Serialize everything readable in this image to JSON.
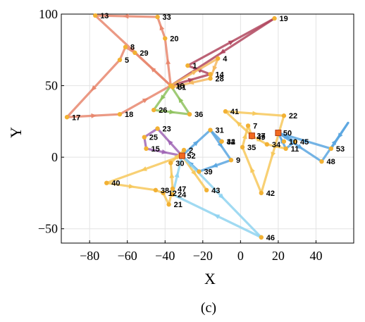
{
  "chart_data": {
    "type": "scatter",
    "xlabel": "X",
    "ylabel": "Y",
    "caption": "(c)",
    "xlim": [
      -95,
      60
    ],
    "ylim": [
      -60,
      100
    ],
    "xticks": [
      -80,
      -60,
      -40,
      -20,
      0,
      20,
      40
    ],
    "yticks": [
      -50,
      0,
      50,
      100
    ],
    "grid": true,
    "nodes": [
      {
        "id": "1",
        "x": -28,
        "y": 64
      },
      {
        "id": "2",
        "x": -30,
        "y": 5
      },
      {
        "id": "4",
        "x": -12,
        "y": 69
      },
      {
        "id": "5",
        "x": -64,
        "y": 68
      },
      {
        "id": "7",
        "x": 4,
        "y": 22
      },
      {
        "id": "8",
        "x": -61,
        "y": 77
      },
      {
        "id": "9",
        "x": -5,
        "y": -2
      },
      {
        "id": "10",
        "x": 23,
        "y": 11
      },
      {
        "id": "11",
        "x": 24,
        "y": 6
      },
      {
        "id": "12",
        "x": -41,
        "y": -25
      },
      {
        "id": "13",
        "x": -77,
        "y": 99
      },
      {
        "id": "14",
        "x": -16,
        "y": 58
      },
      {
        "id": "15",
        "x": -50,
        "y": 6
      },
      {
        "id": "16",
        "x": -37,
        "y": 50
      },
      {
        "id": "17",
        "x": -92,
        "y": 28
      },
      {
        "id": "18",
        "x": -64,
        "y": 30
      },
      {
        "id": "19",
        "x": 18,
        "y": 97
      },
      {
        "id": "20",
        "x": -40,
        "y": 83
      },
      {
        "id": "21",
        "x": -38,
        "y": -33
      },
      {
        "id": "22",
        "x": 23,
        "y": 29
      },
      {
        "id": "23",
        "x": -44,
        "y": 20
      },
      {
        "id": "24",
        "x": -36,
        "y": -26
      },
      {
        "id": "25",
        "x": -51,
        "y": 14
      },
      {
        "id": "26",
        "x": -46,
        "y": 33
      },
      {
        "id": "28",
        "x": -16,
        "y": 55
      },
      {
        "id": "29",
        "x": -56,
        "y": 73
      },
      {
        "id": "30",
        "x": -37,
        "y": -4
      },
      {
        "id": "31",
        "x": -16,
        "y": 19
      },
      {
        "id": "32",
        "x": -10,
        "y": 11
      },
      {
        "id": "33",
        "x": -44,
        "y": 98
      },
      {
        "id": "34",
        "x": 14,
        "y": 9
      },
      {
        "id": "35",
        "x": 1,
        "y": 7
      },
      {
        "id": "36",
        "x": -27,
        "y": 30
      },
      {
        "id": "37",
        "x": 6,
        "y": 15
      },
      {
        "id": "38",
        "x": -45,
        "y": -23
      },
      {
        "id": "39",
        "x": -22,
        "y": -10
      },
      {
        "id": "40",
        "x": -71,
        "y": -18
      },
      {
        "id": "41",
        "x": -8,
        "y": 32
      },
      {
        "id": "42",
        "x": 11,
        "y": -25
      },
      {
        "id": "43",
        "x": -18,
        "y": -23
      },
      {
        "id": "44",
        "x": -10,
        "y": 11
      },
      {
        "id": "45",
        "x": 29,
        "y": 11
      },
      {
        "id": "46",
        "x": 11,
        "y": -56
      },
      {
        "id": "47",
        "x": -36,
        "y": -22
      },
      {
        "id": "48",
        "x": 43,
        "y": -3
      },
      {
        "id": "49",
        "x": 6,
        "y": 14
      },
      {
        "id": "50",
        "x": 20,
        "y": 17
      },
      {
        "id": "51",
        "x": -36,
        "y": 49
      },
      {
        "id": "52",
        "x": -31,
        "y": 1
      },
      {
        "id": "53",
        "x": 48,
        "y": 6
      }
    ],
    "depots": [
      "37",
      "50",
      "52"
    ],
    "routes": [
      {
        "color": "#b0465e",
        "points": [
          [
            -28,
            64
          ],
          [
            18,
            97
          ],
          [
            -37,
            50
          ]
        ]
      },
      {
        "color": "#b0465e",
        "points": [
          [
            -37,
            50
          ],
          [
            -16,
            58
          ],
          [
            -28,
            64
          ]
        ]
      },
      {
        "color": "#e8876e",
        "points": [
          [
            -37,
            50
          ],
          [
            -40,
            83
          ],
          [
            -44,
            98
          ],
          [
            -77,
            99
          ],
          [
            -37,
            50
          ]
        ]
      },
      {
        "color": "#e8876e",
        "points": [
          [
            -37,
            50
          ],
          [
            -56,
            73
          ],
          [
            -61,
            77
          ],
          [
            -64,
            68
          ],
          [
            -92,
            28
          ],
          [
            -64,
            30
          ],
          [
            -37,
            50
          ]
        ]
      },
      {
        "color": "#f4b860",
        "points": [
          [
            -37,
            50
          ],
          [
            -12,
            69
          ],
          [
            -16,
            55
          ],
          [
            -36,
            49
          ]
        ]
      },
      {
        "color": "#8fc25f",
        "points": [
          [
            -37,
            50
          ],
          [
            -46,
            33
          ],
          [
            -27,
            30
          ],
          [
            -37,
            50
          ]
        ]
      },
      {
        "color": "#a066b5",
        "points": [
          [
            -31,
            1
          ],
          [
            -44,
            20
          ],
          [
            -51,
            14
          ],
          [
            -50,
            6
          ],
          [
            -31,
            1
          ]
        ]
      },
      {
        "color": "#f7c85c",
        "points": [
          [
            -31,
            1
          ],
          [
            -71,
            -18
          ],
          [
            -45,
            -23
          ],
          [
            -41,
            -25
          ],
          [
            -38,
            -33
          ],
          [
            -36,
            -22
          ],
          [
            -37,
            -4
          ],
          [
            -30,
            5
          ],
          [
            -31,
            1
          ]
        ]
      },
      {
        "color": "#f7c85c",
        "points": [
          [
            -31,
            1
          ],
          [
            -18,
            -23
          ]
        ]
      },
      {
        "color": "#f7c85c",
        "points": [
          [
            6,
            15
          ],
          [
            -8,
            32
          ],
          [
            23,
            29
          ],
          [
            11,
            -25
          ],
          [
            1,
            7
          ],
          [
            4,
            22
          ],
          [
            6,
            15
          ]
        ]
      },
      {
        "color": "#f7c85c",
        "points": [
          [
            6,
            15
          ],
          [
            14,
            9
          ],
          [
            24,
            6
          ]
        ]
      },
      {
        "color": "#5aa6e0",
        "points": [
          [
            -31,
            1
          ],
          [
            -16,
            19
          ],
          [
            -5,
            -2
          ],
          [
            -22,
            -10
          ],
          [
            -31,
            1
          ]
        ]
      },
      {
        "color": "#5aa6e0",
        "points": [
          [
            -10,
            11
          ],
          [
            -16,
            19
          ]
        ]
      },
      {
        "color": "#5aa6e0",
        "points": [
          [
            20,
            17
          ],
          [
            29,
            11
          ],
          [
            24,
            6
          ],
          [
            20,
            17
          ]
        ]
      },
      {
        "color": "#5aa6e0",
        "points": [
          [
            20,
            17
          ],
          [
            43,
            -3
          ],
          [
            57,
            24
          ],
          [
            48,
            6
          ],
          [
            20,
            17
          ]
        ]
      },
      {
        "color": "#8fd3f0",
        "points": [
          [
            -31,
            1
          ],
          [
            11,
            -56
          ],
          [
            -36,
            -26
          ],
          [
            -31,
            1
          ]
        ]
      }
    ]
  }
}
